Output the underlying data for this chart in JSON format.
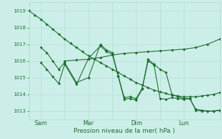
{
  "background_color": "#cceee8",
  "line_color": "#1a6e2e",
  "grid_color": "#aaddcc",
  "ylim": [
    1012.5,
    1019.5
  ],
  "ytick_values": [
    1013,
    1014,
    1015,
    1016,
    1017,
    1018,
    1019
  ],
  "xlabel": "Pression niveau de la mer( hPa )",
  "xlim": [
    0,
    8.0
  ],
  "xtick_positions": [
    0.5,
    2.5,
    4.5,
    6.5
  ],
  "xtick_labels_list": [
    "Sam",
    "Mar",
    "Dim",
    "Lun"
  ],
  "vline_positions": [
    0,
    1.5,
    3.5,
    5.5,
    8.0
  ],
  "series1_x": [
    0.0,
    0.25,
    0.5,
    0.75,
    1.0,
    1.25,
    1.5,
    1.75,
    2.0,
    2.25,
    2.5,
    2.75,
    3.0,
    3.25,
    3.5,
    3.75,
    4.0,
    4.25,
    4.5,
    4.75,
    5.0,
    5.25,
    5.5,
    5.75,
    6.0,
    6.25,
    6.5,
    6.75,
    7.0,
    7.25,
    7.5,
    7.75,
    8.0
  ],
  "series1_y": [
    1019.0,
    1018.75,
    1018.5,
    1018.2,
    1017.9,
    1017.6,
    1017.3,
    1017.05,
    1016.8,
    1016.55,
    1016.3,
    1016.1,
    1015.9,
    1015.7,
    1015.5,
    1015.3,
    1015.1,
    1014.9,
    1014.7,
    1014.55,
    1014.4,
    1014.25,
    1014.15,
    1014.05,
    1013.95,
    1013.9,
    1013.85,
    1013.85,
    1013.85,
    1013.9,
    1013.95,
    1014.0,
    1014.1
  ],
  "series2_x": [
    0.5,
    0.75,
    1.0,
    1.25,
    1.5,
    2.0,
    2.5,
    3.0,
    3.25,
    3.5,
    3.75,
    4.0,
    4.25,
    4.5,
    4.75,
    5.0,
    5.25,
    5.5,
    5.75,
    6.0,
    6.25,
    6.5,
    6.75,
    7.0,
    7.25,
    7.5,
    7.75,
    8.0
  ],
  "series2_y": [
    1016.8,
    1016.5,
    1016.0,
    1015.5,
    1015.9,
    1014.7,
    1015.0,
    1017.0,
    1016.65,
    1016.5,
    1015.1,
    1013.8,
    1013.85,
    1013.75,
    1014.35,
    1016.1,
    1015.8,
    1015.5,
    1015.3,
    1014.0,
    1013.85,
    1013.75,
    1013.75,
    1013.1,
    1013.05,
    1013.0,
    1013.0,
    1013.05
  ],
  "series3_x": [
    0.5,
    0.75,
    1.0,
    1.25,
    1.5,
    2.0,
    2.5,
    3.0,
    3.25,
    3.5,
    3.75,
    4.0,
    4.25,
    4.5,
    4.75,
    5.0,
    5.25,
    5.5,
    5.75,
    6.0,
    6.25,
    6.5,
    6.75,
    7.0,
    7.25,
    7.5,
    7.75,
    8.0
  ],
  "series3_y": [
    1015.9,
    1015.5,
    1015.05,
    1014.65,
    1015.8,
    1014.6,
    1016.15,
    1016.9,
    1016.55,
    1016.4,
    1015.05,
    1013.7,
    1013.75,
    1013.65,
    1014.3,
    1016.0,
    1015.75,
    1013.75,
    1013.7,
    1013.8,
    1013.75,
    1013.7,
    1013.75,
    1013.05,
    1013.0,
    1013.0,
    1013.0,
    1013.05
  ],
  "series4_x": [
    1.5,
    2.0,
    2.5,
    3.0,
    3.5,
    4.0,
    4.5,
    5.0,
    5.5,
    6.0,
    6.5,
    7.0,
    7.5,
    8.0
  ],
  "series4_y": [
    1016.0,
    1016.05,
    1016.1,
    1016.2,
    1016.35,
    1016.45,
    1016.5,
    1016.55,
    1016.6,
    1016.65,
    1016.7,
    1016.8,
    1017.0,
    1017.3
  ],
  "figsize": [
    3.2,
    2.0
  ],
  "dpi": 100
}
